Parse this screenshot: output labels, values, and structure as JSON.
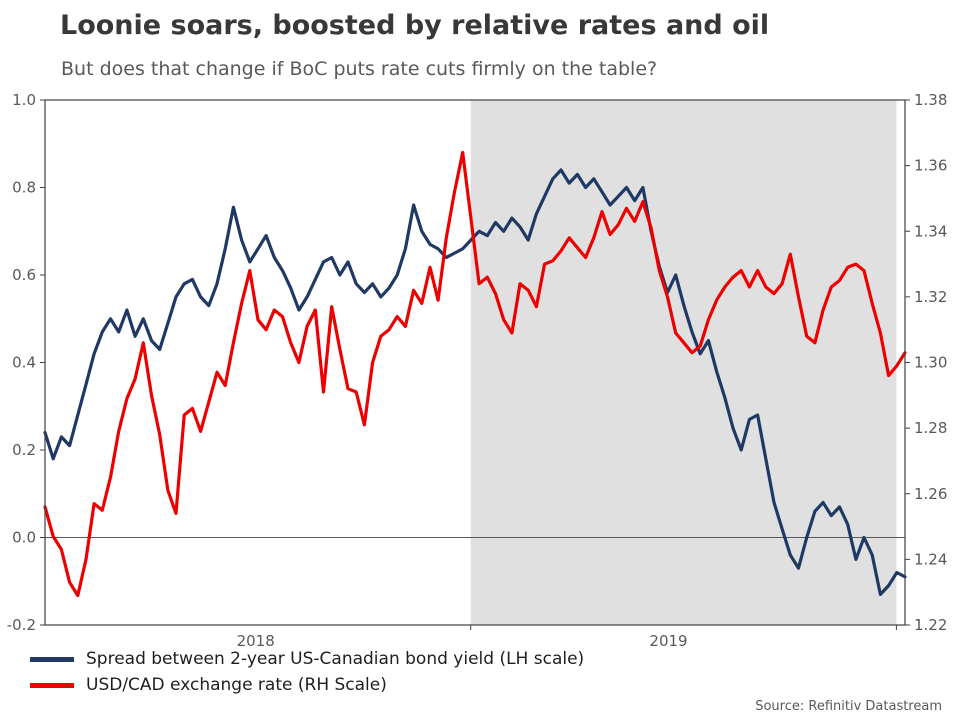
{
  "header": {
    "title": "Loonie soars, boosted by relative rates and oil",
    "subtitle": "But does that change if BoC puts rate cuts firmly on the table?"
  },
  "source": "Source: Refinitiv Datastream",
  "chart_data": {
    "type": "line",
    "title": "Loonie soars, boosted by relative rates and oil",
    "subtitle": "But does that change if BoC puts rate cuts firmly on the table?",
    "grid": false,
    "legend_position": "bottom-left",
    "colors": {
      "band": "#e0e0e0",
      "frame": "#404040",
      "zero_line": "#595959",
      "axis_text": "#595959"
    },
    "shaded_band_frac": [
      49.5,
      99
    ],
    "x_axis": {
      "labels": [
        "2018",
        "2019"
      ],
      "label_fracs": [
        24.5,
        72.5
      ],
      "tick_fracs": [
        49.5,
        99
      ]
    },
    "left_axis": {
      "min": -0.2,
      "max": 1.0,
      "ticks": [
        {
          "v": 1.0,
          "t": "1.0"
        },
        {
          "v": 0.8,
          "t": "0.8"
        },
        {
          "v": 0.6,
          "t": "0.6"
        },
        {
          "v": 0.4,
          "t": "0.4"
        },
        {
          "v": 0.2,
          "t": "0.2"
        },
        {
          "v": 0.0,
          "t": "0.0"
        },
        {
          "v": -0.2,
          "t": "-0.2"
        }
      ]
    },
    "right_axis": {
      "min": 1.22,
      "max": 1.38,
      "ticks": [
        {
          "v": 1.38,
          "t": "1.38"
        },
        {
          "v": 1.36,
          "t": "1.36"
        },
        {
          "v": 1.34,
          "t": "1.34"
        },
        {
          "v": 1.32,
          "t": "1.32"
        },
        {
          "v": 1.3,
          "t": "1.30"
        },
        {
          "v": 1.28,
          "t": "1.28"
        },
        {
          "v": 1.26,
          "t": "1.26"
        },
        {
          "v": 1.24,
          "t": "1.24"
        },
        {
          "v": 1.22,
          "t": "1.22"
        }
      ]
    },
    "series": [
      {
        "name": "Spread between 2-year US-Canadian bond yield (LH scale)",
        "axis": "left",
        "color": "#1f3864",
        "values": [
          0.24,
          0.18,
          0.23,
          0.21,
          0.28,
          0.35,
          0.42,
          0.47,
          0.5,
          0.47,
          0.52,
          0.46,
          0.5,
          0.45,
          0.43,
          0.49,
          0.55,
          0.58,
          0.59,
          0.55,
          0.53,
          0.58,
          0.66,
          0.755,
          0.68,
          0.63,
          0.66,
          0.69,
          0.64,
          0.61,
          0.57,
          0.52,
          0.55,
          0.59,
          0.63,
          0.64,
          0.6,
          0.63,
          0.58,
          0.56,
          0.58,
          0.55,
          0.57,
          0.6,
          0.66,
          0.76,
          0.7,
          0.67,
          0.66,
          0.64,
          0.65,
          0.66,
          0.68,
          0.7,
          0.69,
          0.72,
          0.7,
          0.73,
          0.71,
          0.68,
          0.74,
          0.78,
          0.82,
          0.84,
          0.81,
          0.83,
          0.8,
          0.82,
          0.79,
          0.76,
          0.78,
          0.8,
          0.77,
          0.8,
          0.7,
          0.62,
          0.56,
          0.6,
          0.53,
          0.47,
          0.42,
          0.45,
          0.38,
          0.32,
          0.25,
          0.2,
          0.27,
          0.28,
          0.18,
          0.08,
          0.02,
          -0.04,
          -0.07,
          0.0,
          0.06,
          0.08,
          0.05,
          0.07,
          0.03,
          -0.05,
          0.0,
          -0.04,
          -0.13,
          -0.11,
          -0.08,
          -0.09
        ]
      },
      {
        "name": "USD/CAD exchange rate (RH Scale)",
        "axis": "right",
        "color": "#ee0000",
        "values": [
          1.256,
          1.247,
          1.243,
          1.233,
          1.229,
          1.24,
          1.257,
          1.255,
          1.265,
          1.279,
          1.289,
          1.295,
          1.306,
          1.29,
          1.278,
          1.261,
          1.254,
          1.284,
          1.286,
          1.279,
          1.288,
          1.297,
          1.293,
          1.306,
          1.318,
          1.328,
          1.313,
          1.31,
          1.316,
          1.314,
          1.306,
          1.3,
          1.311,
          1.316,
          1.291,
          1.317,
          1.304,
          1.292,
          1.291,
          1.281,
          1.3,
          1.308,
          1.31,
          1.314,
          1.311,
          1.322,
          1.318,
          1.329,
          1.319,
          1.338,
          1.352,
          1.364,
          1.344,
          1.324,
          1.326,
          1.321,
          1.313,
          1.309,
          1.324,
          1.322,
          1.317,
          1.33,
          1.331,
          1.334,
          1.338,
          1.335,
          1.332,
          1.338,
          1.346,
          1.339,
          1.342,
          1.347,
          1.343,
          1.349,
          1.341,
          1.328,
          1.32,
          1.309,
          1.306,
          1.303,
          1.305,
          1.313,
          1.319,
          1.323,
          1.326,
          1.328,
          1.323,
          1.328,
          1.323,
          1.321,
          1.324,
          1.333,
          1.32,
          1.308,
          1.306,
          1.316,
          1.323,
          1.325,
          1.329,
          1.33,
          1.328,
          1.318,
          1.309,
          1.296,
          1.299,
          1.303
        ]
      }
    ]
  }
}
